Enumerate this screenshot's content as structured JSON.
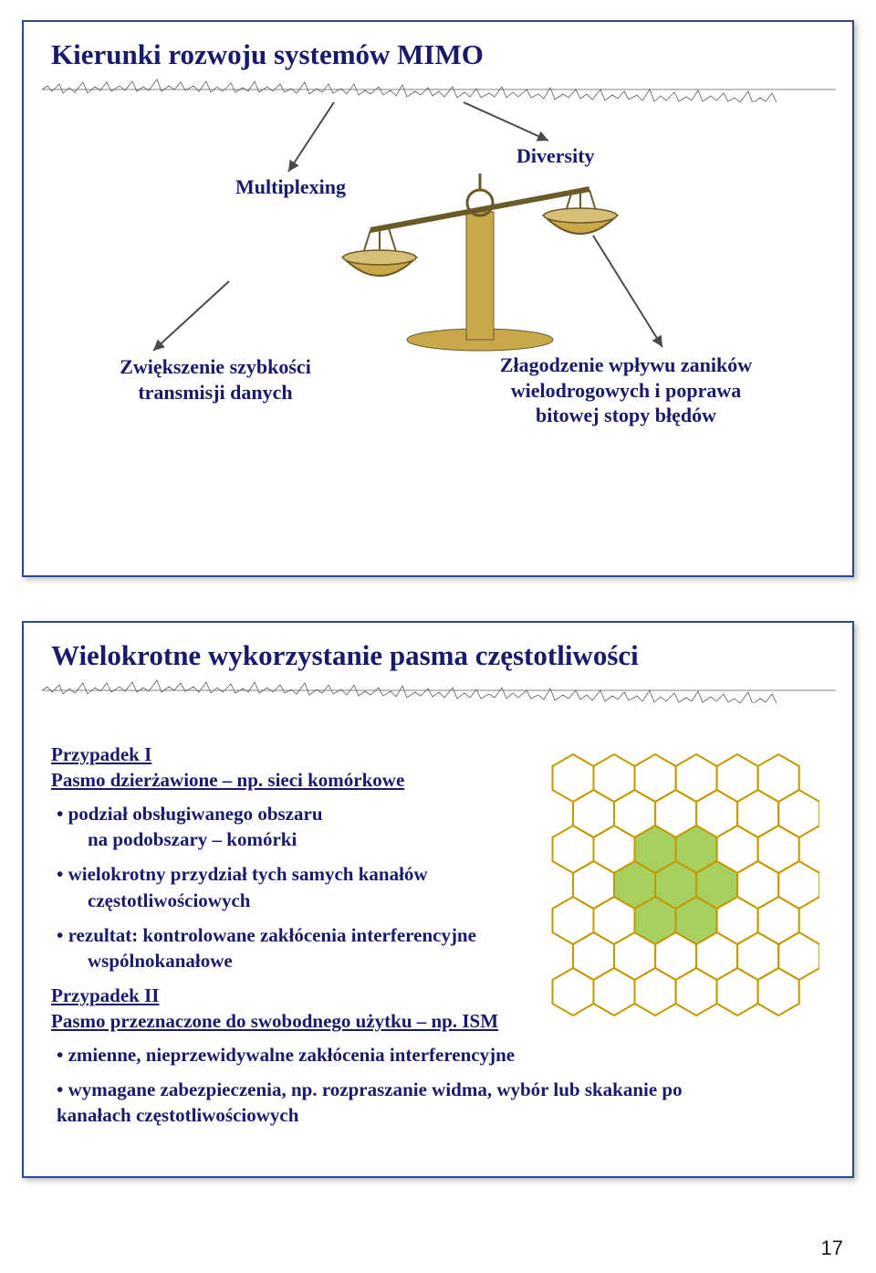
{
  "page_number": "17",
  "colors": {
    "slide_border": "#2a4a8a",
    "title_text": "#1a1a6a",
    "body_text": "#1a1a6a",
    "waveform": "#5a5a5a",
    "arrow": "#4a4a4a",
    "scale_gold": "#c9a84a",
    "scale_dark": "#6a5a2a",
    "hex_core_fill": "#a8d060",
    "hex_stroke": "#c29a00",
    "hex_outer_fill": "none"
  },
  "slide1": {
    "title": "Kierunki rozwoju systemów MIMO",
    "label_left": "Multiplexing",
    "label_right": "Diversity",
    "branch_left": "Zwiększenie szybkości transmisji danych",
    "branch_right": "Złagodzenie wpływu zaników wielodrogowych i poprawa bitowej stopy błędów",
    "label_left_fontsize": 22,
    "label_right_fontsize": 22,
    "title_fontsize": 31
  },
  "slide2": {
    "title": "Wielokrotne wykorzystanie pasma częstotliwości",
    "title_fontsize": 31,
    "case1_head1": "Przypadek I",
    "case1_head2": "Pasmo dzierżawione – np. sieci komórkowe",
    "case1_bullets": [
      {
        "main": "podział obsługiwanego obszaru",
        "indent": "na podobszary – komórki"
      },
      {
        "main": "wielokrotny przydział tych samych kanałów",
        "indent": "częstotliwościowych"
      },
      {
        "main": "rezultat: kontrolowane zakłócenia interferencyjne",
        "indent": "wspólnokanałowe"
      }
    ],
    "case2_head1": "Przypadek II",
    "case2_head2": "Pasmo przeznaczone do swobodnego użytku – np. ISM",
    "case2_bullets": [
      {
        "main": "zmienne, nieprzewidywalne zakłócenia interferencyjne"
      },
      {
        "main": "wymagane zabezpieczenia, np. rozpraszanie widma, wybór lub skakanie po kanałach częstotliwościowych"
      }
    ],
    "hex_diagram": {
      "type": "hex-grid",
      "stroke": "#c29a00",
      "core_fill": "#a8d060",
      "outer_fill": "none",
      "stroke_width": 2
    }
  }
}
